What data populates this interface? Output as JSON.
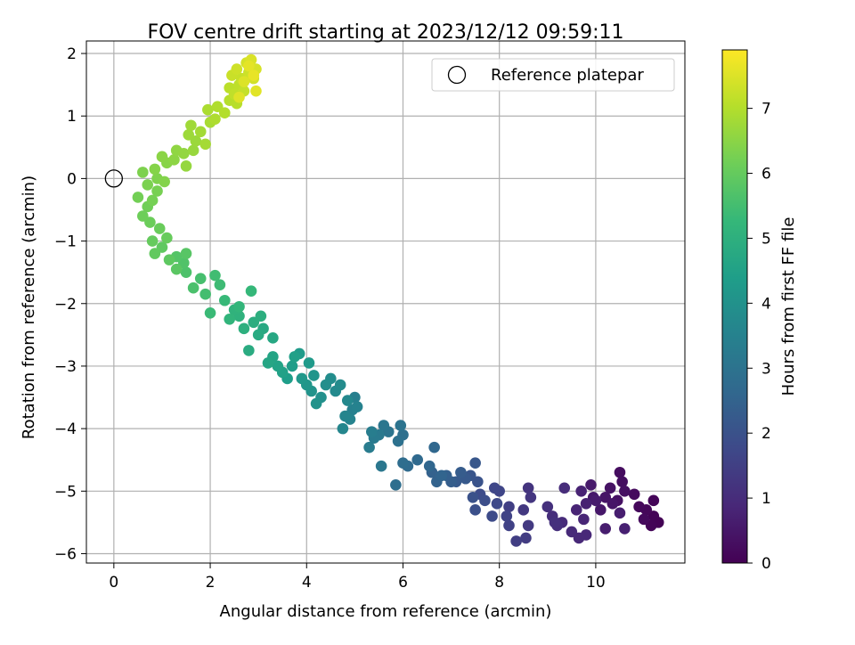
{
  "chart_data": {
    "type": "scatter",
    "title": "FOV centre drift starting at 2023/12/12 09:59:11",
    "xlabel": "Angular distance from reference (arcmin)",
    "ylabel": "Rotation from reference (arcmin)",
    "xlim": [
      -0.57,
      11.85
    ],
    "ylim": [
      -6.15,
      2.2
    ],
    "xticks": [
      0,
      2,
      4,
      6,
      8,
      10
    ],
    "yticks": [
      2,
      1,
      0,
      -1,
      -2,
      -3,
      -4,
      -5,
      -6
    ],
    "xtick_labels": [
      "0",
      "2",
      "4",
      "6",
      "8",
      "10"
    ],
    "ytick_labels": [
      "2",
      "1",
      "0",
      "−1",
      "−2",
      "−3",
      "−4",
      "−5",
      "−6"
    ],
    "grid": true,
    "legend": {
      "position": "top-right",
      "entries": [
        {
          "label": "Reference platepar",
          "marker": "open-circle"
        }
      ]
    },
    "reference_point": {
      "x": 0,
      "y": 0
    },
    "colorbar": {
      "label": "Hours from first FF file",
      "colormap": "viridis",
      "range": [
        0,
        7.9
      ],
      "ticks": [
        0,
        1,
        2,
        3,
        4,
        5,
        6,
        7
      ],
      "tick_labels": [
        "0",
        "1",
        "2",
        "3",
        "4",
        "5",
        "6",
        "7"
      ]
    },
    "colormap_stops": [
      "#440154",
      "#482878",
      "#3e4989",
      "#31688e",
      "#26828e",
      "#1f9e89",
      "#35b779",
      "#6ece58",
      "#b5de2b",
      "#fde725"
    ],
    "series": [
      {
        "points": [
          [
            11.3,
            -5.5,
            0.02
          ],
          [
            11.2,
            -5.4,
            0.05
          ],
          [
            11.15,
            -5.55,
            0.07
          ],
          [
            11.2,
            -5.15,
            0.1
          ],
          [
            11.05,
            -5.3,
            0.13
          ],
          [
            10.9,
            -5.25,
            0.16
          ],
          [
            11.0,
            -5.45,
            0.19
          ],
          [
            10.8,
            -5.05,
            0.23
          ],
          [
            10.5,
            -4.7,
            0.27
          ],
          [
            10.55,
            -4.85,
            0.3
          ],
          [
            10.6,
            -5.0,
            0.33
          ],
          [
            10.45,
            -5.15,
            0.37
          ],
          [
            10.3,
            -4.95,
            0.4
          ],
          [
            10.2,
            -5.1,
            0.43
          ],
          [
            10.35,
            -5.2,
            0.46
          ],
          [
            10.1,
            -5.3,
            0.5
          ],
          [
            9.95,
            -5.1,
            0.53
          ],
          [
            9.9,
            -4.9,
            0.56
          ],
          [
            10.0,
            -5.15,
            0.6
          ],
          [
            10.2,
            -5.6,
            0.63
          ],
          [
            10.5,
            -5.35,
            0.66
          ],
          [
            10.6,
            -5.6,
            0.7
          ],
          [
            9.8,
            -5.2,
            0.73
          ],
          [
            9.7,
            -5.0,
            0.77
          ],
          [
            9.6,
            -5.3,
            0.8
          ],
          [
            9.75,
            -5.45,
            0.83
          ],
          [
            9.8,
            -5.7,
            0.87
          ],
          [
            9.65,
            -5.75,
            0.9
          ],
          [
            9.5,
            -5.65,
            0.93
          ],
          [
            9.3,
            -5.5,
            0.97
          ],
          [
            9.35,
            -4.95,
            1.0
          ],
          [
            9.1,
            -5.4,
            1.03
          ],
          [
            9.2,
            -5.55,
            1.07
          ],
          [
            9.0,
            -5.25,
            1.1
          ],
          [
            9.15,
            -5.5,
            1.13
          ],
          [
            8.6,
            -4.95,
            1.2
          ],
          [
            8.65,
            -5.1,
            1.25
          ],
          [
            8.5,
            -5.3,
            1.3
          ],
          [
            8.6,
            -5.55,
            1.35
          ],
          [
            8.55,
            -5.75,
            1.4
          ],
          [
            8.35,
            -5.8,
            1.45
          ],
          [
            8.2,
            -5.25,
            1.5
          ],
          [
            8.2,
            -5.55,
            1.55
          ],
          [
            8.15,
            -5.4,
            1.6
          ],
          [
            8.0,
            -5.0,
            1.65
          ],
          [
            7.9,
            -4.95,
            1.7
          ],
          [
            7.95,
            -5.2,
            1.75
          ],
          [
            7.85,
            -5.4,
            1.8
          ],
          [
            7.6,
            -5.05,
            1.85
          ],
          [
            7.7,
            -5.15,
            1.9
          ],
          [
            7.5,
            -5.3,
            1.95
          ],
          [
            7.45,
            -5.1,
            2.0
          ],
          [
            7.55,
            -4.85,
            2.05
          ],
          [
            7.4,
            -4.75,
            2.1
          ],
          [
            7.5,
            -4.55,
            2.15
          ],
          [
            7.3,
            -4.8,
            2.2
          ],
          [
            7.1,
            -4.85,
            2.25
          ],
          [
            7.2,
            -4.7,
            2.3
          ],
          [
            7.0,
            -4.85,
            2.35
          ],
          [
            6.9,
            -4.75,
            2.4
          ],
          [
            6.6,
            -4.7,
            2.45
          ],
          [
            6.7,
            -4.85,
            2.5
          ],
          [
            6.8,
            -4.75,
            2.55
          ],
          [
            6.55,
            -4.6,
            2.6
          ],
          [
            6.65,
            -4.3,
            2.65
          ],
          [
            6.3,
            -4.5,
            2.7
          ],
          [
            6.1,
            -4.6,
            2.75
          ],
          [
            6.0,
            -4.55,
            2.8
          ],
          [
            5.85,
            -4.9,
            2.85
          ],
          [
            6.0,
            -4.1,
            2.9
          ],
          [
            5.9,
            -4.2,
            2.95
          ],
          [
            5.95,
            -3.95,
            3.0
          ],
          [
            5.7,
            -4.05,
            3.05
          ],
          [
            5.6,
            -3.95,
            3.1
          ],
          [
            5.55,
            -4.6,
            3.15
          ],
          [
            5.5,
            -4.1,
            3.2
          ],
          [
            5.4,
            -4.15,
            3.25
          ],
          [
            5.3,
            -4.3,
            3.3
          ],
          [
            5.35,
            -4.05,
            3.35
          ],
          [
            5.0,
            -3.5,
            3.4
          ],
          [
            4.95,
            -3.7,
            3.45
          ],
          [
            5.05,
            -3.65,
            3.5
          ],
          [
            4.9,
            -3.85,
            3.55
          ],
          [
            4.8,
            -3.8,
            3.6
          ],
          [
            4.75,
            -4.0,
            3.65
          ],
          [
            4.85,
            -3.55,
            3.7
          ],
          [
            4.6,
            -3.4,
            3.75
          ],
          [
            4.7,
            -3.3,
            3.8
          ],
          [
            4.5,
            -3.2,
            3.85
          ],
          [
            4.4,
            -3.3,
            3.9
          ],
          [
            4.3,
            -3.5,
            3.95
          ],
          [
            4.2,
            -3.6,
            4.0
          ],
          [
            4.1,
            -3.4,
            4.05
          ],
          [
            4.15,
            -3.15,
            4.1
          ],
          [
            4.0,
            -3.3,
            4.15
          ],
          [
            3.9,
            -3.2,
            4.2
          ],
          [
            4.05,
            -2.95,
            4.25
          ],
          [
            3.85,
            -2.8,
            4.3
          ],
          [
            3.7,
            -3.0,
            4.35
          ],
          [
            3.6,
            -3.2,
            4.4
          ],
          [
            3.75,
            -2.85,
            4.45
          ],
          [
            3.5,
            -3.1,
            4.5
          ],
          [
            3.4,
            -3.0,
            4.55
          ],
          [
            3.3,
            -2.85,
            4.6
          ],
          [
            3.2,
            -2.95,
            4.65
          ],
          [
            3.3,
            -2.55,
            4.7
          ],
          [
            3.1,
            -2.4,
            4.75
          ],
          [
            3.0,
            -2.5,
            4.8
          ],
          [
            2.8,
            -2.75,
            4.85
          ],
          [
            2.9,
            -2.3,
            4.9
          ],
          [
            3.05,
            -2.2,
            4.95
          ],
          [
            2.7,
            -2.4,
            5.0
          ],
          [
            2.6,
            -2.2,
            5.05
          ],
          [
            2.5,
            -2.1,
            5.1
          ],
          [
            2.4,
            -2.25,
            5.15
          ],
          [
            2.6,
            -2.05,
            5.2
          ],
          [
            2.85,
            -1.8,
            5.25
          ],
          [
            2.3,
            -1.95,
            5.3
          ],
          [
            2.0,
            -2.15,
            5.35
          ],
          [
            2.2,
            -1.7,
            5.4
          ],
          [
            2.1,
            -1.55,
            5.45
          ],
          [
            1.9,
            -1.85,
            5.5
          ],
          [
            1.8,
            -1.6,
            5.55
          ],
          [
            1.65,
            -1.75,
            5.6
          ],
          [
            1.5,
            -1.5,
            5.65
          ],
          [
            1.45,
            -1.35,
            5.7
          ],
          [
            1.3,
            -1.25,
            5.75
          ],
          [
            1.5,
            -1.2,
            5.8
          ],
          [
            1.3,
            -1.45,
            5.85
          ],
          [
            1.15,
            -1.3,
            5.9
          ],
          [
            1.0,
            -1.1,
            5.93
          ],
          [
            0.85,
            -1.2,
            5.96
          ],
          [
            0.8,
            -1.0,
            6.0
          ],
          [
            1.1,
            -0.95,
            6.03
          ],
          [
            0.95,
            -0.8,
            6.06
          ],
          [
            0.75,
            -0.7,
            6.1
          ],
          [
            0.6,
            -0.6,
            6.13
          ],
          [
            0.7,
            -0.45,
            6.16
          ],
          [
            0.5,
            -0.3,
            6.2
          ],
          [
            0.8,
            -0.35,
            6.23
          ],
          [
            0.9,
            -0.2,
            6.26
          ],
          [
            0.7,
            -0.1,
            6.3
          ],
          [
            0.6,
            0.1,
            6.33
          ],
          [
            0.9,
            0.0,
            6.36
          ],
          [
            1.05,
            -0.05,
            6.4
          ],
          [
            0.85,
            0.15,
            6.43
          ],
          [
            1.1,
            0.25,
            6.46
          ],
          [
            1.0,
            0.35,
            6.5
          ],
          [
            1.25,
            0.3,
            6.53
          ],
          [
            1.3,
            0.45,
            6.56
          ],
          [
            1.45,
            0.4,
            6.6
          ],
          [
            1.5,
            0.2,
            6.63
          ],
          [
            1.65,
            0.45,
            6.66
          ],
          [
            1.7,
            0.6,
            6.7
          ],
          [
            1.55,
            0.7,
            6.73
          ],
          [
            1.6,
            0.85,
            6.76
          ],
          [
            1.8,
            0.75,
            6.8
          ],
          [
            1.9,
            0.55,
            6.83
          ],
          [
            2.0,
            0.9,
            6.86
          ],
          [
            1.95,
            1.1,
            6.9
          ],
          [
            2.1,
            0.95,
            6.93
          ],
          [
            2.15,
            1.15,
            6.96
          ],
          [
            2.3,
            1.05,
            7.0
          ],
          [
            2.4,
            1.25,
            7.03
          ],
          [
            2.55,
            1.2,
            7.06
          ],
          [
            2.4,
            1.45,
            7.1
          ],
          [
            2.6,
            1.5,
            7.13
          ],
          [
            2.5,
            1.35,
            7.16
          ],
          [
            2.7,
            1.4,
            7.2
          ],
          [
            2.65,
            1.6,
            7.23
          ],
          [
            2.45,
            1.65,
            7.26
          ],
          [
            2.8,
            1.7,
            7.3
          ],
          [
            2.55,
            1.75,
            7.33
          ],
          [
            2.9,
            1.6,
            7.36
          ],
          [
            2.75,
            1.85,
            7.4
          ],
          [
            2.95,
            1.75,
            7.43
          ],
          [
            2.85,
            1.9,
            7.46
          ],
          [
            2.7,
            1.55,
            7.5
          ],
          [
            2.6,
            1.3,
            7.53
          ],
          [
            2.95,
            1.4,
            7.56
          ],
          [
            2.8,
            1.8,
            7.6
          ],
          [
            2.9,
            1.65,
            7.65
          ]
        ]
      }
    ]
  }
}
